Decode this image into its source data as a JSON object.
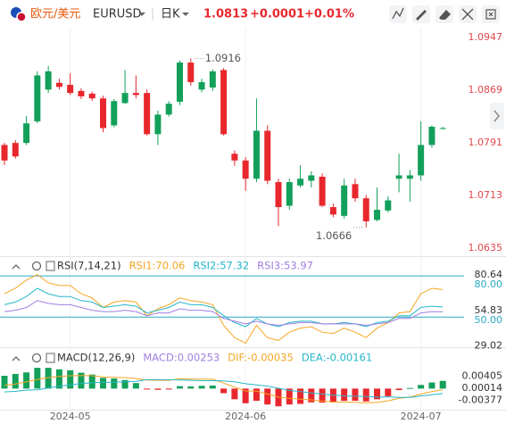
{
  "header": {
    "pair": "欧元/美元",
    "symbol": "EURUSD",
    "period": "日K",
    "price": "1.0813",
    "change": "+0.0001",
    "change_pct": "+0.01%"
  },
  "chart_data": [
    {
      "type": "candlestick",
      "up_color": "#13a05a",
      "down_color": "#e8272d",
      "open": [
        1.0788,
        1.0791,
        1.0791,
        1.0823,
        1.087,
        1.088,
        1.0877,
        1.0868,
        1.0864,
        1.0857,
        1.0817,
        1.085,
        1.0865,
        1.0865,
        1.0804,
        1.0833,
        1.0852,
        1.091,
        1.087,
        1.0873,
        1.0899,
        1.0775,
        1.0765,
        1.0738,
        1.0809,
        1.0733,
        1.0698,
        1.0728,
        1.0735,
        1.0741,
        1.0696,
        1.0683,
        1.073,
        1.0709,
        1.0677,
        1.0691,
        1.0738,
        1.0738,
        1.0743,
        1.0788,
        1.0812
      ],
      "high": [
        1.0791,
        1.0795,
        1.0831,
        1.0897,
        1.0905,
        1.0886,
        1.0894,
        1.0872,
        1.0867,
        1.0861,
        1.0856,
        1.0899,
        1.0891,
        1.087,
        1.0839,
        1.0853,
        1.0913,
        1.0916,
        1.0886,
        1.09,
        1.0902,
        1.078,
        1.077,
        1.0857,
        1.0817,
        1.0738,
        1.0738,
        1.0758,
        1.0749,
        1.0746,
        1.0701,
        1.0738,
        1.0738,
        1.0714,
        1.0725,
        1.0712,
        1.0775,
        1.0751,
        1.0823,
        1.0817,
        1.0815
      ],
      "low": [
        1.0758,
        1.0768,
        1.0788,
        1.082,
        1.0865,
        1.087,
        1.0862,
        1.0856,
        1.0853,
        1.0807,
        1.0814,
        1.0849,
        1.0857,
        1.0802,
        1.0788,
        1.083,
        1.0847,
        1.0876,
        1.0866,
        1.0868,
        1.0802,
        1.0757,
        1.072,
        1.0733,
        1.073,
        1.0668,
        1.0692,
        1.0725,
        1.0725,
        1.0696,
        1.0681,
        1.0679,
        1.0704,
        1.0666,
        1.0675,
        1.0688,
        1.0718,
        1.0704,
        1.0735,
        1.0784,
        1.0811
      ],
      "close": [
        1.0765,
        1.0771,
        1.082,
        1.0891,
        1.0897,
        1.0874,
        1.0865,
        1.086,
        1.0857,
        1.0813,
        1.0853,
        1.0865,
        1.0862,
        1.0804,
        1.0833,
        1.0849,
        1.091,
        1.0881,
        1.0881,
        1.0897,
        1.0804,
        1.0765,
        1.0738,
        1.0809,
        1.0735,
        1.0696,
        1.0733,
        1.0738,
        1.0743,
        1.0698,
        1.0685,
        1.0728,
        1.0709,
        1.0675,
        1.0692,
        1.0706,
        1.0743,
        1.0743,
        1.0788,
        1.0815,
        1.0813
      ],
      "ylim": [
        1.0626,
        1.0963
      ],
      "yticks": [
        1.0947,
        1.0869,
        1.0791,
        1.0713,
        1.0635
      ],
      "ytick_color": "#e0474c",
      "xticks": [
        {
          "value": 6,
          "label": "2024-05"
        },
        {
          "value": 22,
          "label": "2024-06"
        },
        {
          "value": 38,
          "label": "2024-07"
        }
      ],
      "grid": true,
      "annotations": [
        {
          "label": "1.0916",
          "x": 17,
          "value": 1.0916
        },
        {
          "label": "1.0666",
          "x": 33,
          "value": 1.0666
        }
      ]
    },
    {
      "type": "line",
      "title": "RSI(7,14,21)",
      "series": [
        {
          "name": "RSI1:70.06",
          "color": "#f5a623",
          "values": [
            67,
            71,
            77,
            81,
            75,
            73,
            73,
            67,
            64,
            57,
            61,
            62,
            61,
            51,
            56,
            59,
            64,
            62,
            61,
            59,
            44,
            35,
            31,
            44,
            35,
            33,
            39,
            42,
            43,
            39,
            38,
            42,
            39,
            35,
            42,
            46,
            53,
            54,
            67,
            71,
            70.06
          ]
        },
        {
          "name": "RSI2:57.32",
          "color": "#26b7c9",
          "values": [
            59,
            61,
            65,
            71,
            67,
            65,
            65,
            62,
            61,
            57,
            58,
            59,
            58,
            53,
            55,
            57,
            61,
            59,
            59,
            57,
            51,
            46,
            43,
            49,
            45,
            43,
            46,
            47,
            47,
            45,
            45,
            46,
            45,
            43,
            46,
            47,
            51,
            51,
            57,
            58,
            57.32
          ]
        },
        {
          "name": "RSI3:53.97",
          "color": "#a07fe0",
          "values": [
            54,
            55,
            57,
            62,
            60,
            59,
            59,
            57,
            55,
            54,
            54,
            55,
            54,
            51,
            53,
            53,
            56,
            55,
            55,
            54,
            49,
            47,
            45,
            47,
            45,
            44,
            45,
            46,
            46,
            45,
            45,
            45,
            45,
            44,
            45,
            46,
            49,
            49,
            53,
            54,
            53.97
          ]
        }
      ],
      "ylim": [
        28.7,
        84
      ],
      "yticks": [
        80.64,
        54.83,
        29.02
      ],
      "reference_lines": [
        {
          "value": 80,
          "label": "80.00"
        },
        {
          "value": 50,
          "label": "50.00"
        }
      ],
      "reference_color": "#2aa7c4"
    },
    {
      "type": "macd",
      "title": "MACD(12,26,9)",
      "bars": {
        "name": "MACD:0.00253",
        "color": "#a07fe0",
        "up_color": "#13a05a",
        "down_color": "#e8272d",
        "values": [
          0.0042,
          0.0048,
          0.0053,
          0.0068,
          0.0068,
          0.0063,
          0.006,
          0.0052,
          0.0046,
          0.0035,
          0.0033,
          0.0028,
          0.0018,
          -0.0003,
          -0.0004,
          -0.0003,
          0.0008,
          0.0007,
          0.0009,
          0.001,
          -0.0015,
          -0.0035,
          -0.0048,
          -0.004,
          -0.0052,
          -0.0058,
          -0.0052,
          -0.005,
          -0.0045,
          -0.0046,
          -0.0045,
          -0.004,
          -0.004,
          -0.0042,
          -0.0035,
          -0.0025,
          -0.0005,
          0.0002,
          0.0012,
          0.002,
          0.00253
        ]
      },
      "series": [
        {
          "name": "DIF:-0.00035",
          "color": "#f5a623",
          "values": [
            0.001,
            0.0015,
            0.0022,
            0.003,
            0.0036,
            0.004,
            0.0042,
            0.0043,
            0.0042,
            0.0038,
            0.0037,
            0.0036,
            0.0033,
            0.0028,
            0.0027,
            0.0027,
            0.0032,
            0.0031,
            0.0031,
            0.0031,
            0.0018,
            0.0005,
            -0.0008,
            -0.0008,
            -0.0018,
            -0.0028,
            -0.0032,
            -0.0035,
            -0.0037,
            -0.0041,
            -0.0044,
            -0.0044,
            -0.0045,
            -0.0047,
            -0.0045,
            -0.004,
            -0.0032,
            -0.0028,
            -0.0018,
            -0.001,
            -0.00035
          ]
        },
        {
          "name": "DEA:-0.00161",
          "color": "#26b7c9",
          "values": [
            -0.0011,
            -0.0009,
            -0.0005,
            -0.0004,
            0.0002,
            0.0008,
            0.0012,
            0.0017,
            0.0019,
            0.0021,
            0.0021,
            0.0022,
            0.0024,
            0.0029,
            0.0029,
            0.0029,
            0.0028,
            0.0027,
            0.0026,
            0.0026,
            0.0025,
            0.0022,
            0.0016,
            0.0012,
            0.0008,
            0.0001,
            -0.0006,
            -0.001,
            -0.0014,
            -0.0018,
            -0.0021,
            -0.0024,
            -0.0025,
            -0.0026,
            -0.0028,
            -0.0027,
            -0.0029,
            -0.0029,
            -0.0024,
            -0.002,
            -0.00161
          ]
        }
      ],
      "ylim": [
        -0.0072,
        0.008
      ],
      "yticks": [
        0.00405,
        0.00014,
        -0.00377
      ]
    }
  ]
}
